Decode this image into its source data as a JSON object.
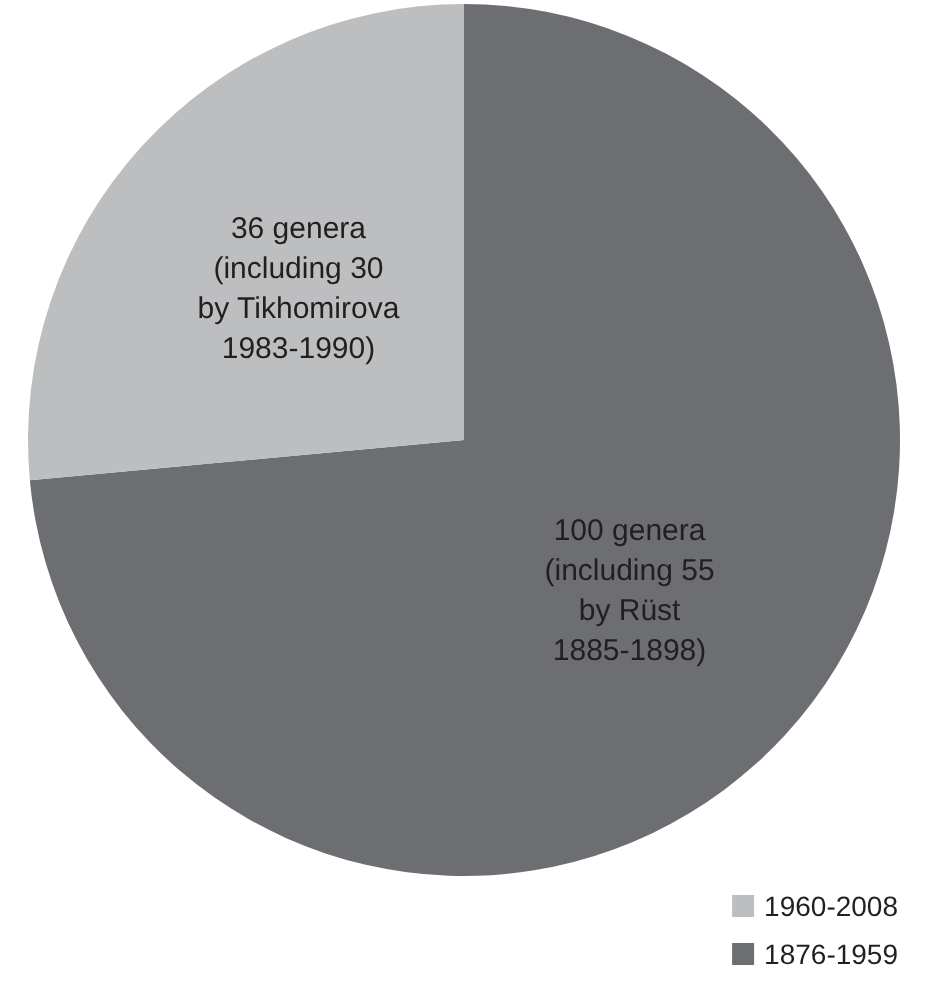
{
  "chart_data": {
    "type": "pie",
    "categories": [
      "1876-1959",
      "1960-2008"
    ],
    "values": [
      100,
      36
    ],
    "colors": [
      "#6d6e71",
      "#bcbec0"
    ],
    "value_labels": [
      "100 genera\n(including 55\nby Rüst\n1885-1898)",
      "36 genera\n(including 30\nby Tikhomirova\n1983-1990)"
    ],
    "legend": "bottom right"
  }
}
